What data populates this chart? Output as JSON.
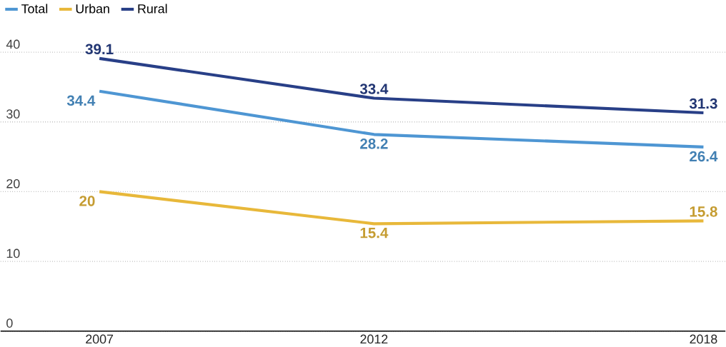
{
  "chart_data": {
    "type": "line",
    "x": [
      2007,
      2012,
      2018
    ],
    "series": [
      {
        "name": "Total",
        "color": "#4e96d3",
        "values": [
          34.4,
          28.2,
          26.4
        ]
      },
      {
        "name": "Urban",
        "color": "#e8b83a",
        "values": [
          20,
          15.4,
          15.8
        ]
      },
      {
        "name": "Rural",
        "color": "#283f87",
        "values": [
          39.1,
          33.4,
          31.3
        ]
      }
    ],
    "xlim": [
      2005.2,
      2018.4
    ],
    "xticks": [
      2007,
      2012,
      2018
    ],
    "ylim": [
      0,
      40
    ],
    "yticks": [
      0,
      10,
      20,
      30,
      40
    ],
    "grid": "y",
    "legend": "top left",
    "data_labels": true,
    "line_style": "solid"
  }
}
